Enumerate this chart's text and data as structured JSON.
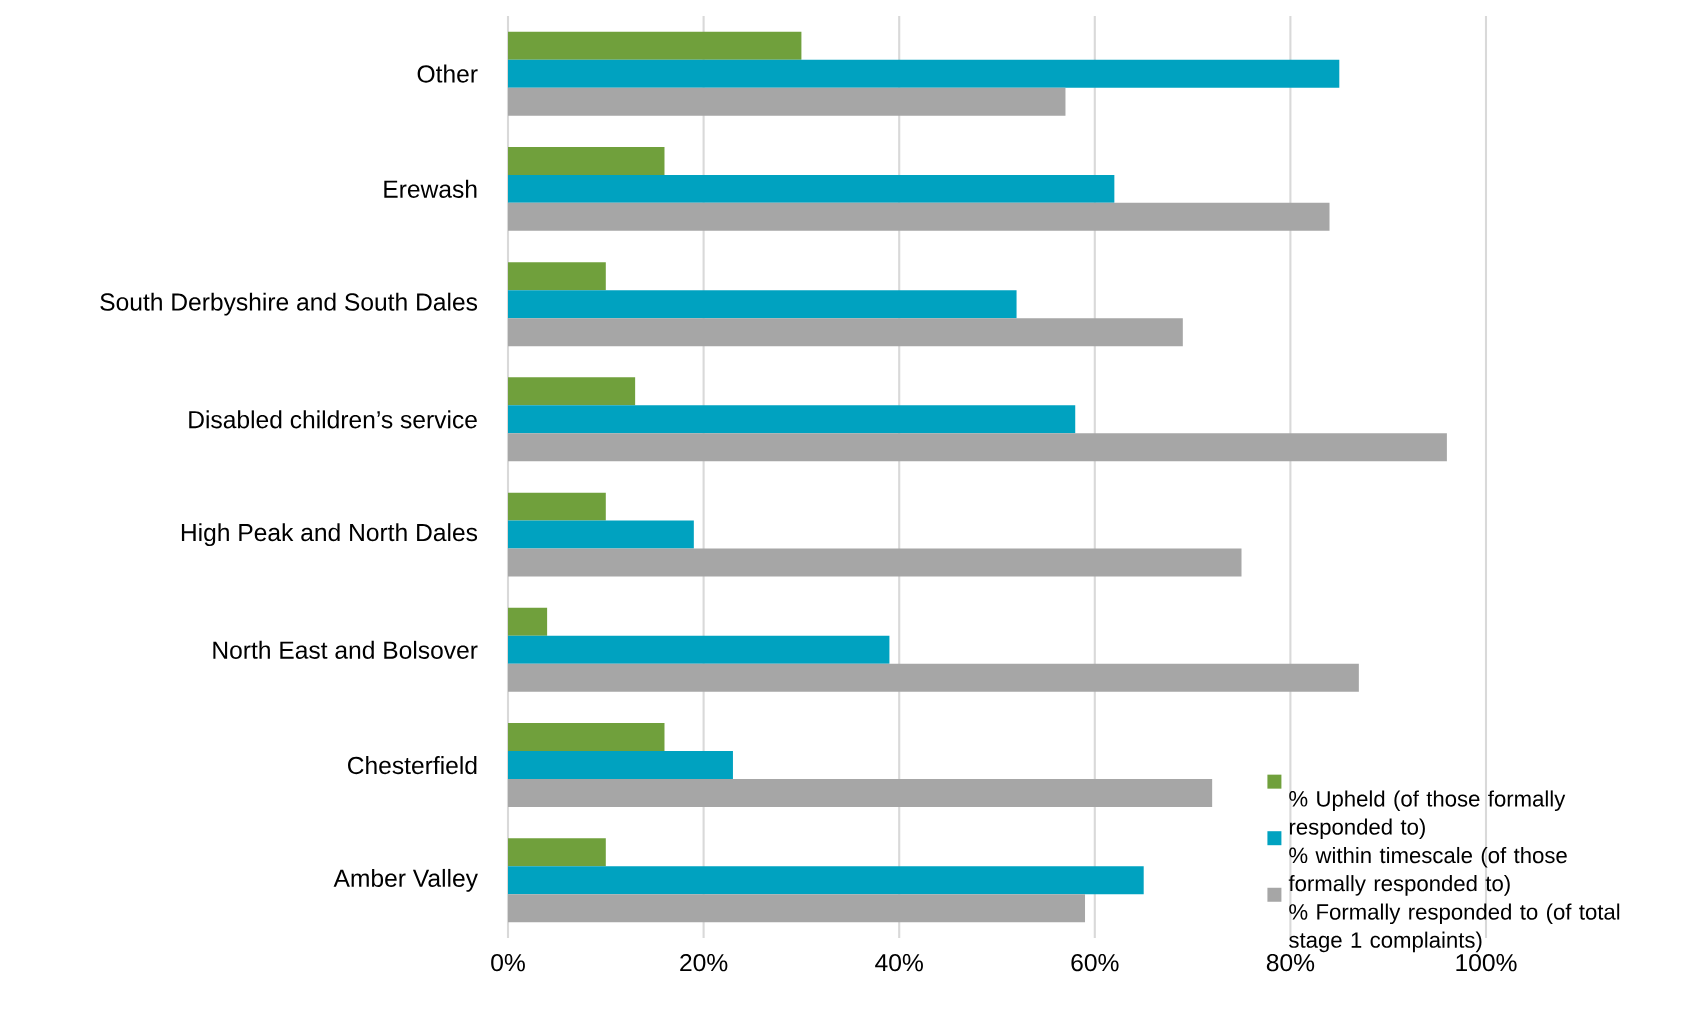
{
  "chart_data": {
    "type": "bar",
    "orientation": "horizontal",
    "categories": [
      "Other",
      "Erewash",
      "South Derbyshire and South Dales",
      "Disabled children’s service",
      "High Peak and North Dales",
      "North East and Bolsover",
      "Chesterfield",
      "Amber Valley"
    ],
    "series": [
      {
        "name": "% Upheld (of those formally responded to)",
        "color": "#70a03c",
        "values": [
          30,
          16,
          10,
          13,
          10,
          4,
          16,
          10
        ]
      },
      {
        "name": "% within timescale (of those formally responded to)",
        "color": "#00a2c0",
        "values": [
          85,
          62,
          52,
          58,
          19,
          39,
          23,
          65
        ]
      },
      {
        "name": "% Formally responded to (of total stage 1 complaints)",
        "color": "#a6a6a6",
        "values": [
          57,
          84,
          69,
          96,
          75,
          87,
          72,
          59
        ]
      }
    ],
    "xlim": [
      0,
      100
    ],
    "xticks": [
      {
        "value": 0,
        "label": "0%"
      },
      {
        "value": 20,
        "label": "20%"
      },
      {
        "value": 40,
        "label": "40%"
      },
      {
        "value": 60,
        "label": "60%"
      },
      {
        "value": 80,
        "label": "80%"
      },
      {
        "value": 100,
        "label": "100%"
      }
    ],
    "grid": "x",
    "legend": "bottom right"
  }
}
